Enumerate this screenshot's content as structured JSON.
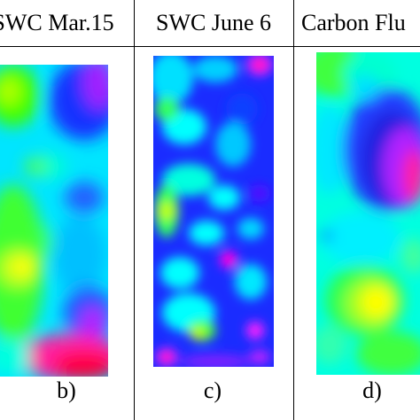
{
  "headers": {
    "b": "SWC Mar.15",
    "c": "SWC June 6",
    "d": "Carbon Flu"
  },
  "captions": {
    "b": "b)",
    "c": "c)",
    "d": "d)"
  },
  "colormap": [
    "#ff0033",
    "#ff00ff",
    "#0000ff",
    "#00ffff",
    "#00ff00",
    "#ffff00"
  ]
}
